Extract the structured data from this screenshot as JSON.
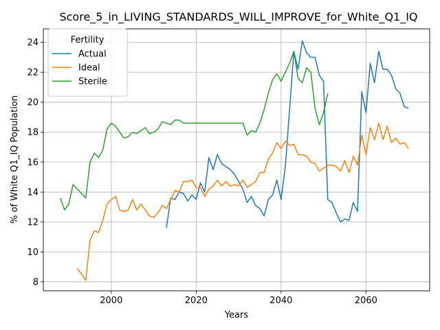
{
  "chart_data": {
    "type": "line",
    "title": "Score_5_in_LIVING_STANDARDS_WILL_IMPROVE_for_White_Q1_IQ",
    "xlabel": "Years",
    "ylabel": "% of White Q1_IQ Population",
    "xlim": [
      1984,
      2075
    ],
    "ylim": [
      7.4,
      24.9
    ],
    "x_ticks": [
      2000,
      2020,
      2040,
      2060
    ],
    "y_ticks": [
      8,
      10,
      12,
      14,
      16,
      18,
      20,
      22,
      24
    ],
    "grid": true,
    "legend": {
      "title": "Fertility",
      "placement": "top-left"
    },
    "series": [
      {
        "name": "Actual",
        "color": "#1f77b4",
        "points": [
          [
            2013,
            11.6
          ],
          [
            2014,
            13.6
          ],
          [
            2015,
            13.5
          ],
          [
            2016,
            14.0
          ],
          [
            2017,
            13.9
          ],
          [
            2018,
            13.4
          ],
          [
            2019,
            13.8
          ],
          [
            2020,
            13.5
          ],
          [
            2021,
            14.6
          ],
          [
            2022,
            14.0
          ],
          [
            2023,
            16.3
          ],
          [
            2024,
            15.5
          ],
          [
            2025,
            16.5
          ],
          [
            2026,
            15.9
          ],
          [
            2027,
            15.7
          ],
          [
            2028,
            15.5
          ],
          [
            2029,
            15.2
          ],
          [
            2030,
            14.7
          ],
          [
            2031,
            14.2
          ],
          [
            2032,
            13.3
          ],
          [
            2033,
            13.7
          ],
          [
            2034,
            13.1
          ],
          [
            2035,
            12.9
          ],
          [
            2036,
            12.4
          ],
          [
            2037,
            13.5
          ],
          [
            2038,
            13.8
          ],
          [
            2039,
            14.8
          ],
          [
            2040,
            13.5
          ],
          [
            2041,
            15.7
          ],
          [
            2042,
            19.5
          ],
          [
            2043,
            23.4
          ],
          [
            2044,
            22.2
          ],
          [
            2045,
            24.1
          ],
          [
            2046,
            23.3
          ],
          [
            2047,
            23.0
          ],
          [
            2048,
            23.0
          ],
          [
            2049,
            21.8
          ],
          [
            2050,
            21.4
          ],
          [
            2051,
            13.5
          ],
          [
            2052,
            13.3
          ],
          [
            2053,
            12.6
          ],
          [
            2054,
            12.0
          ],
          [
            2055,
            12.2
          ],
          [
            2056,
            12.1
          ],
          [
            2057,
            13.3
          ],
          [
            2058,
            12.7
          ],
          [
            2059,
            20.7
          ],
          [
            2060,
            19.3
          ],
          [
            2061,
            22.6
          ],
          [
            2062,
            21.3
          ],
          [
            2063,
            23.4
          ],
          [
            2064,
            22.2
          ],
          [
            2065,
            22.2
          ],
          [
            2066,
            21.8
          ],
          [
            2067,
            20.9
          ],
          [
            2068,
            20.6
          ],
          [
            2069,
            19.7
          ],
          [
            2070,
            19.6
          ]
        ]
      },
      {
        "name": "Ideal",
        "color": "#ff7f0e",
        "points": [
          [
            1992,
            8.9
          ],
          [
            1993,
            8.5
          ],
          [
            1994,
            8.1
          ],
          [
            1995,
            10.8
          ],
          [
            1996,
            11.4
          ],
          [
            1997,
            11.3
          ],
          [
            1998,
            12.1
          ],
          [
            1999,
            13.2
          ],
          [
            2000,
            13.5
          ],
          [
            2001,
            13.7
          ],
          [
            2002,
            12.8
          ],
          [
            2003,
            12.7
          ],
          [
            2004,
            12.8
          ],
          [
            2005,
            13.5
          ],
          [
            2006,
            12.8
          ],
          [
            2007,
            13.2
          ],
          [
            2008,
            12.8
          ],
          [
            2009,
            12.4
          ],
          [
            2010,
            12.3
          ],
          [
            2011,
            12.6
          ],
          [
            2012,
            13.1
          ],
          [
            2013,
            12.9
          ],
          [
            2014,
            13.5
          ],
          [
            2015,
            14.1
          ],
          [
            2016,
            14.0
          ],
          [
            2017,
            14.7
          ],
          [
            2018,
            14.7
          ],
          [
            2019,
            14.8
          ],
          [
            2020,
            14.3
          ],
          [
            2021,
            14.3
          ],
          [
            2022,
            13.7
          ],
          [
            2023,
            14.2
          ],
          [
            2024,
            14.4
          ],
          [
            2025,
            14.8
          ],
          [
            2026,
            14.4
          ],
          [
            2027,
            14.7
          ],
          [
            2028,
            14.4
          ],
          [
            2029,
            14.5
          ],
          [
            2030,
            14.4
          ],
          [
            2031,
            14.8
          ],
          [
            2032,
            14.3
          ],
          [
            2033,
            14.5
          ],
          [
            2034,
            14.7
          ],
          [
            2035,
            15.3
          ],
          [
            2036,
            15.3
          ],
          [
            2037,
            16.2
          ],
          [
            2038,
            16.6
          ],
          [
            2039,
            17.3
          ],
          [
            2040,
            16.9
          ],
          [
            2041,
            17.4
          ],
          [
            2042,
            17.1
          ],
          [
            2043,
            17.2
          ],
          [
            2044,
            16.5
          ],
          [
            2045,
            16.5
          ],
          [
            2046,
            16.4
          ],
          [
            2047,
            16.0
          ],
          [
            2048,
            15.9
          ],
          [
            2049,
            15.4
          ],
          [
            2050,
            15.6
          ],
          [
            2051,
            15.8
          ],
          [
            2052,
            15.8
          ],
          [
            2053,
            15.7
          ],
          [
            2054,
            15.4
          ],
          [
            2055,
            16.1
          ],
          [
            2056,
            15.3
          ],
          [
            2057,
            16.4
          ],
          [
            2058,
            15.8
          ],
          [
            2059,
            17.8
          ],
          [
            2060,
            16.5
          ],
          [
            2061,
            18.3
          ],
          [
            2062,
            17.5
          ],
          [
            2063,
            18.6
          ],
          [
            2064,
            17.5
          ],
          [
            2065,
            18.4
          ],
          [
            2066,
            17.3
          ],
          [
            2067,
            17.6
          ],
          [
            2068,
            17.2
          ],
          [
            2069,
            17.3
          ],
          [
            2070,
            16.9
          ]
        ]
      },
      {
        "name": "Sterile",
        "color": "#2ca02c",
        "points": [
          [
            1988,
            13.6
          ],
          [
            1989,
            12.8
          ],
          [
            1990,
            13.2
          ],
          [
            1991,
            14.5
          ],
          [
            1992,
            14.2
          ],
          [
            1993,
            13.9
          ],
          [
            1994,
            13.6
          ],
          [
            1995,
            16.0
          ],
          [
            1996,
            16.6
          ],
          [
            1997,
            16.3
          ],
          [
            1998,
            16.8
          ],
          [
            1999,
            18.2
          ],
          [
            2000,
            18.6
          ],
          [
            2001,
            18.4
          ],
          [
            2002,
            18.0
          ],
          [
            2003,
            17.6
          ],
          [
            2004,
            17.7
          ],
          [
            2005,
            18.0
          ],
          [
            2006,
            17.9
          ],
          [
            2007,
            18.1
          ],
          [
            2008,
            18.3
          ],
          [
            2009,
            17.9
          ],
          [
            2010,
            18.0
          ],
          [
            2011,
            18.2
          ],
          [
            2012,
            18.7
          ],
          [
            2013,
            18.6
          ],
          [
            2014,
            18.5
          ],
          [
            2015,
            18.8
          ],
          [
            2016,
            18.8
          ],
          [
            2017,
            18.6
          ],
          [
            2018,
            18.6
          ],
          [
            2019,
            18.6
          ],
          [
            2020,
            18.6
          ],
          [
            2021,
            18.6
          ],
          [
            2022,
            18.6
          ],
          [
            2023,
            18.6
          ],
          [
            2024,
            18.6
          ],
          [
            2025,
            18.6
          ],
          [
            2026,
            18.6
          ],
          [
            2027,
            18.6
          ],
          [
            2028,
            18.6
          ],
          [
            2029,
            18.6
          ],
          [
            2030,
            18.6
          ],
          [
            2031,
            18.6
          ],
          [
            2032,
            17.8
          ],
          [
            2033,
            18.1
          ],
          [
            2034,
            18.0
          ],
          [
            2035,
            18.6
          ],
          [
            2036,
            19.5
          ],
          [
            2037,
            20.6
          ],
          [
            2038,
            21.5
          ],
          [
            2039,
            21.9
          ],
          [
            2040,
            21.4
          ],
          [
            2041,
            22.0
          ],
          [
            2042,
            22.6
          ],
          [
            2043,
            23.4
          ],
          [
            2044,
            21.6
          ],
          [
            2045,
            21.3
          ],
          [
            2046,
            22.3
          ],
          [
            2047,
            22.0
          ],
          [
            2048,
            19.6
          ],
          [
            2049,
            18.5
          ],
          [
            2050,
            19.3
          ],
          [
            2051,
            20.6
          ]
        ]
      }
    ]
  }
}
